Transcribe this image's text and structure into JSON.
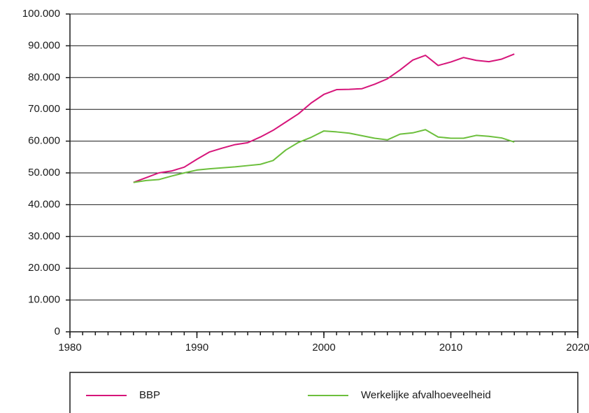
{
  "chart_data": {
    "type": "line",
    "x": [
      1985,
      1986,
      1987,
      1988,
      1989,
      1990,
      1991,
      1992,
      1993,
      1994,
      1995,
      1996,
      1997,
      1998,
      1999,
      2000,
      2001,
      2002,
      2003,
      2004,
      2005,
      2006,
      2007,
      2008,
      2009,
      2010,
      2011,
      2012,
      2013,
      2014,
      2015
    ],
    "series": [
      {
        "name": "BBP",
        "color": "#d6157a",
        "values": [
          47000,
          48500,
          50000,
          50600,
          51800,
          54300,
          56600,
          57800,
          58900,
          59500,
          61300,
          63400,
          66000,
          68600,
          72000,
          74700,
          76200,
          76300,
          76500,
          77900,
          79600,
          82400,
          85500,
          87000,
          83800,
          84900,
          86300,
          85400,
          85000,
          85800,
          87400
        ]
      },
      {
        "name": "Werkelijke afvalhoeveelheid",
        "color": "#6cbf3c",
        "values": [
          47000,
          47600,
          47900,
          49000,
          50000,
          50900,
          51300,
          51600,
          51900,
          52300,
          52700,
          53900,
          57200,
          59600,
          61200,
          63200,
          62900,
          62500,
          61700,
          60900,
          60400,
          62200,
          62600,
          63600,
          61300,
          60900,
          60900,
          61800,
          61500,
          61000,
          59700
        ]
      }
    ],
    "xlim": [
      1980,
      2020
    ],
    "xticks": [
      1980,
      1990,
      2000,
      2010,
      2020
    ],
    "ylim": [
      0,
      100000
    ],
    "yticks": [
      0,
      {
        "value": 10000,
        "label": "10.000"
      },
      {
        "value": 20000,
        "label": "20.000"
      },
      {
        "value": 30000,
        "label": "30.000"
      },
      {
        "value": 40000,
        "label": "40.000"
      },
      {
        "value": 50000,
        "label": "50.000"
      },
      {
        "value": 60000,
        "label": "60.000"
      },
      {
        "value": 70000,
        "label": "70.000"
      },
      {
        "value": 80000,
        "label": "80.000"
      },
      {
        "value": 90000,
        "label": "90.000"
      },
      {
        "value": 100000,
        "label": "100.000"
      }
    ],
    "grid": true
  }
}
